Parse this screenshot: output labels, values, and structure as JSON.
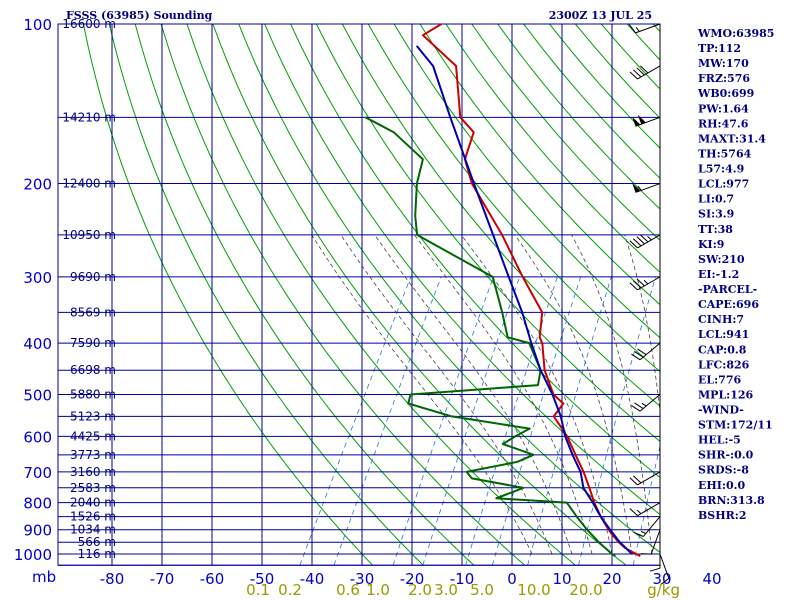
{
  "chart_data": {
    "type": "skew-t",
    "title": "FSSS (63985) Sounding",
    "timestamp": "2300Z 13 JUL 25",
    "pressure_unit": "mb",
    "pressure_levels": [
      100,
      200,
      300,
      400,
      500,
      600,
      700,
      800,
      900,
      1000
    ],
    "pressure_range": [
      100,
      1050
    ],
    "temperature_ticks": [
      -80,
      -70,
      -60,
      -50,
      -40,
      -30,
      -20,
      -10,
      0,
      10,
      20,
      30,
      40
    ],
    "temperature_range": [
      -80,
      40
    ],
    "mixing_ratio_labels": [
      "0.1",
      "0.2",
      "0.6",
      "1.0",
      "2.0",
      "3.0",
      "5.0",
      "10.0",
      "20.0"
    ],
    "mixing_ratio_unit": "g/kg",
    "height_levels": [
      {
        "p": 100,
        "label": "16600 m"
      },
      {
        "p": 150,
        "label": "14210 m"
      },
      {
        "p": 200,
        "label": "12400 m"
      },
      {
        "p": 250,
        "label": "10950 m"
      },
      {
        "p": 300,
        "label": "9690 m"
      },
      {
        "p": 350,
        "label": "8569 m"
      },
      {
        "p": 400,
        "label": "7590 m"
      },
      {
        "p": 450,
        "label": "6698 m"
      },
      {
        "p": 500,
        "label": "5880 m"
      },
      {
        "p": 550,
        "label": "5123 m"
      },
      {
        "p": 600,
        "label": "4425 m"
      },
      {
        "p": 650,
        "label": "3773 m"
      },
      {
        "p": 700,
        "label": "3160 m"
      },
      {
        "p": 750,
        "label": "2583 m"
      },
      {
        "p": 800,
        "label": "2040 m"
      },
      {
        "p": 850,
        "label": "1526 m"
      },
      {
        "p": 900,
        "label": "1034 m"
      },
      {
        "p": 950,
        "label": "566 m"
      },
      {
        "p": 1000,
        "label": "116 m"
      }
    ],
    "series": [
      {
        "role": "temperature",
        "color": "#cc0000",
        "points": [
          [
            1009,
            25.9
          ],
          [
            1000,
            24.8
          ],
          [
            975,
            22.0
          ],
          [
            950,
            20.0
          ],
          [
            925,
            18.2
          ],
          [
            900,
            16.5
          ],
          [
            850,
            13.4
          ],
          [
            800,
            10.5
          ],
          [
            750,
            7.8
          ],
          [
            700,
            4.8
          ],
          [
            650,
            1.2
          ],
          [
            600,
            -2.6
          ],
          [
            550,
            -7.6
          ],
          [
            520,
            -7.2
          ],
          [
            500,
            -10.2
          ],
          [
            450,
            -14.8
          ],
          [
            400,
            -18.4
          ],
          [
            390,
            -19.6
          ],
          [
            350,
            -22.0
          ],
          [
            300,
            -30.0
          ],
          [
            250,
            -39.0
          ],
          [
            200,
            -51.0
          ],
          [
            180,
            -55.2
          ],
          [
            160,
            -56.6
          ],
          [
            150,
            -61.0
          ],
          [
            120,
            -67.8
          ],
          [
            105,
            -78.0
          ],
          [
            100,
            -75.6
          ]
        ]
      },
      {
        "role": "dewpoint",
        "color": "#006600",
        "points": [
          [
            1009,
            20.9
          ],
          [
            1000,
            20.0
          ],
          [
            950,
            16.0
          ],
          [
            900,
            12.2
          ],
          [
            850,
            8.6
          ],
          [
            800,
            5.0
          ],
          [
            785,
            -9.6
          ],
          [
            750,
            -5.4
          ],
          [
            720,
            -16.8
          ],
          [
            700,
            -18.6
          ],
          [
            670,
            -9.6
          ],
          [
            650,
            -7.2
          ],
          [
            620,
            -14.6
          ],
          [
            600,
            -13.0
          ],
          [
            580,
            -11.0
          ],
          [
            550,
            -28.0
          ],
          [
            520,
            -38.2
          ],
          [
            500,
            -38.8
          ],
          [
            480,
            -14.4
          ],
          [
            450,
            -15.6
          ],
          [
            400,
            -21.0
          ],
          [
            390,
            -26.0
          ],
          [
            350,
            -30.0
          ],
          [
            300,
            -36.0
          ],
          [
            250,
            -56.0
          ],
          [
            230,
            -58.6
          ],
          [
            200,
            -62.0
          ],
          [
            180,
            -63.6
          ],
          [
            160,
            -72.6
          ],
          [
            150,
            -80.0
          ]
        ]
      },
      {
        "role": "parcel",
        "color": "#0000aa",
        "points": [
          [
            1000,
            24.0
          ],
          [
            950,
            20.2
          ],
          [
            900,
            16.8
          ],
          [
            850,
            13.4
          ],
          [
            800,
            10.2
          ],
          [
            750,
            6.6
          ],
          [
            700,
            4.2
          ],
          [
            650,
            0.6
          ],
          [
            600,
            -3.0
          ],
          [
            550,
            -6.2
          ],
          [
            500,
            -10.4
          ],
          [
            450,
            -15.6
          ],
          [
            400,
            -20.6
          ],
          [
            350,
            -26.0
          ],
          [
            300,
            -32.8
          ],
          [
            250,
            -40.8
          ],
          [
            200,
            -50.6
          ],
          [
            150,
            -63.0
          ],
          [
            120,
            -72.4
          ],
          [
            110,
            -78.0
          ]
        ]
      }
    ],
    "winds": [
      {
        "p": 1000,
        "dir": 160,
        "spd": 10
      },
      {
        "p": 950,
        "dir": 180,
        "spd": 10
      },
      {
        "p": 900,
        "dir": 200,
        "spd": 10
      },
      {
        "p": 850,
        "dir": 220,
        "spd": 15
      },
      {
        "p": 800,
        "dir": 240,
        "spd": 15
      },
      {
        "p": 700,
        "dir": 240,
        "spd": 20
      },
      {
        "p": 500,
        "dir": 230,
        "spd": 25
      },
      {
        "p": 400,
        "dir": 230,
        "spd": 30
      },
      {
        "p": 300,
        "dir": 240,
        "spd": 35
      },
      {
        "p": 250,
        "dir": 240,
        "spd": 45
      },
      {
        "p": 200,
        "dir": 250,
        "spd": 55
      },
      {
        "p": 150,
        "dir": 250,
        "spd": 100
      },
      {
        "p": 120,
        "dir": 240,
        "spd": 40
      },
      {
        "p": 100,
        "dir": 250,
        "spd": 15
      }
    ]
  },
  "indices": [
    "WMO:63985",
    "TP:112",
    "MW:170",
    "FRZ:576",
    "WB0:699",
    "PW:1.64",
    "RH:47.6",
    "MAXT:31.4",
    "TH:5764",
    "L57:4.9",
    "LCL:977",
    "LI:0.7",
    "SI:3.9",
    "TT:38",
    "KI:9",
    "SW:210",
    "EI:-1.2",
    "-PARCEL-",
    "CAPE:696",
    "CINH:7",
    "LCL:941",
    "CAP:0.8",
    "LFC:826",
    "EL:776",
    "MPL:126",
    "-WIND-",
    "STM:172/11",
    "HEL:-5",
    "SHR-:0.0",
    "SRDS:-8",
    "EHI:0.0",
    "BRN:313.8",
    "BSHR:2"
  ],
  "colors": {
    "grid": "#000099",
    "isotherm": "#000099",
    "dry_adiabat": "#00a000",
    "moist_adiabat": "#444444",
    "mixing_ratio": "#2277cc",
    "temperature": "#cc0000",
    "dewpoint": "#006600",
    "parcel": "#0000aa",
    "text": "#000080"
  }
}
